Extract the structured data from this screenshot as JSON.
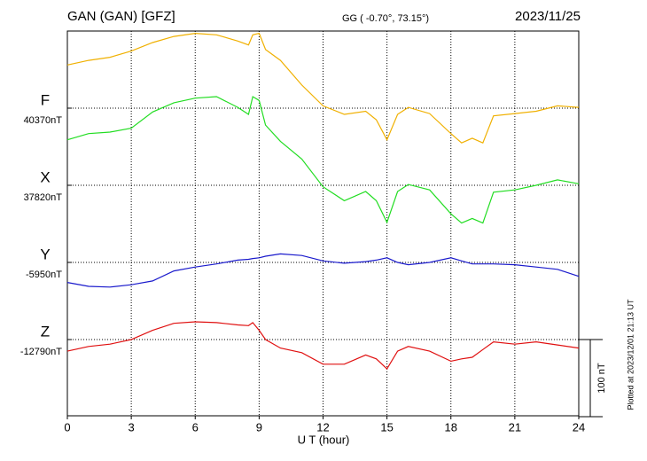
{
  "chart_data": {
    "type": "line",
    "title": "GAN (GAN)  [GFZ]",
    "subtitle": "GG ( -0.70°,  73.15°)",
    "date": "2023/11/25",
    "x_label": "U T (hour)",
    "footnote": "Plotted at 2023/12/01 21:13 UT",
    "xlim": [
      0,
      24
    ],
    "xticks": [
      0,
      3,
      6,
      9,
      12,
      15,
      18,
      21,
      24
    ],
    "grid": true,
    "scale": {
      "value": 100,
      "label": "100 nT"
    },
    "x": [
      0,
      1,
      2,
      3,
      4,
      5,
      6,
      7,
      8,
      8.5,
      8.7,
      9,
      9.3,
      10,
      11,
      12,
      13,
      14,
      14.5,
      15,
      15.5,
      16,
      17,
      18,
      18.5,
      19,
      19.5,
      20,
      21,
      22,
      23,
      24
    ],
    "series": [
      {
        "name": "F",
        "color": "#f0b000",
        "baseline": {
          "value": 40370,
          "label": "40370nT"
        },
        "values": [
          40426,
          40432,
          40436,
          40444,
          40455,
          40463,
          40467,
          40465,
          40457,
          40452,
          40465,
          40467,
          40446,
          40432,
          40400,
          40373,
          40362,
          40366,
          40355,
          40329,
          40362,
          40371,
          40363,
          40337,
          40325,
          40331,
          40325,
          40360,
          40363,
          40366,
          40373,
          40371
        ]
      },
      {
        "name": "X",
        "color": "#22dd22",
        "baseline": {
          "value": 37820,
          "label": "37820nT"
        },
        "values": [
          37879,
          37887,
          37889,
          37894,
          37915,
          37927,
          37933,
          37935,
          37921,
          37912,
          37935,
          37930,
          37898,
          37877,
          37854,
          37818,
          37800,
          37812,
          37800,
          37772,
          37812,
          37821,
          37814,
          37783,
          37771,
          37777,
          37771,
          37811,
          37814,
          37820,
          37827,
          37822
        ]
      },
      {
        "name": "Y",
        "color": "#1a1acc",
        "baseline": {
          "value": -5950,
          "label": "-5950nT"
        },
        "values": [
          -5976,
          -5981,
          -5982,
          -5979,
          -5974,
          -5961,
          -5956,
          -5952,
          -5947,
          -5946,
          -5945,
          -5944,
          -5942,
          -5939,
          -5941,
          -5948,
          -5951,
          -5949,
          -5947,
          -5944,
          -5950,
          -5953,
          -5950,
          -5944,
          -5948,
          -5952,
          -5952,
          -5952,
          -5953,
          -5956,
          -5959,
          -5968
        ]
      },
      {
        "name": "Z",
        "color": "#e01010",
        "baseline": {
          "value": -12790,
          "label": "-12790nT"
        },
        "values": [
          -12805,
          -12799,
          -12796,
          -12790,
          -12778,
          -12769,
          -12767,
          -12768,
          -12771,
          -12772,
          -12768,
          -12778,
          -12790,
          -12801,
          -12807,
          -12822,
          -12822,
          -12810,
          -12815,
          -12828,
          -12805,
          -12799,
          -12805,
          -12818,
          -12815,
          -12813,
          -12803,
          -12793,
          -12796,
          -12793,
          -12797,
          -12801
        ]
      }
    ]
  }
}
